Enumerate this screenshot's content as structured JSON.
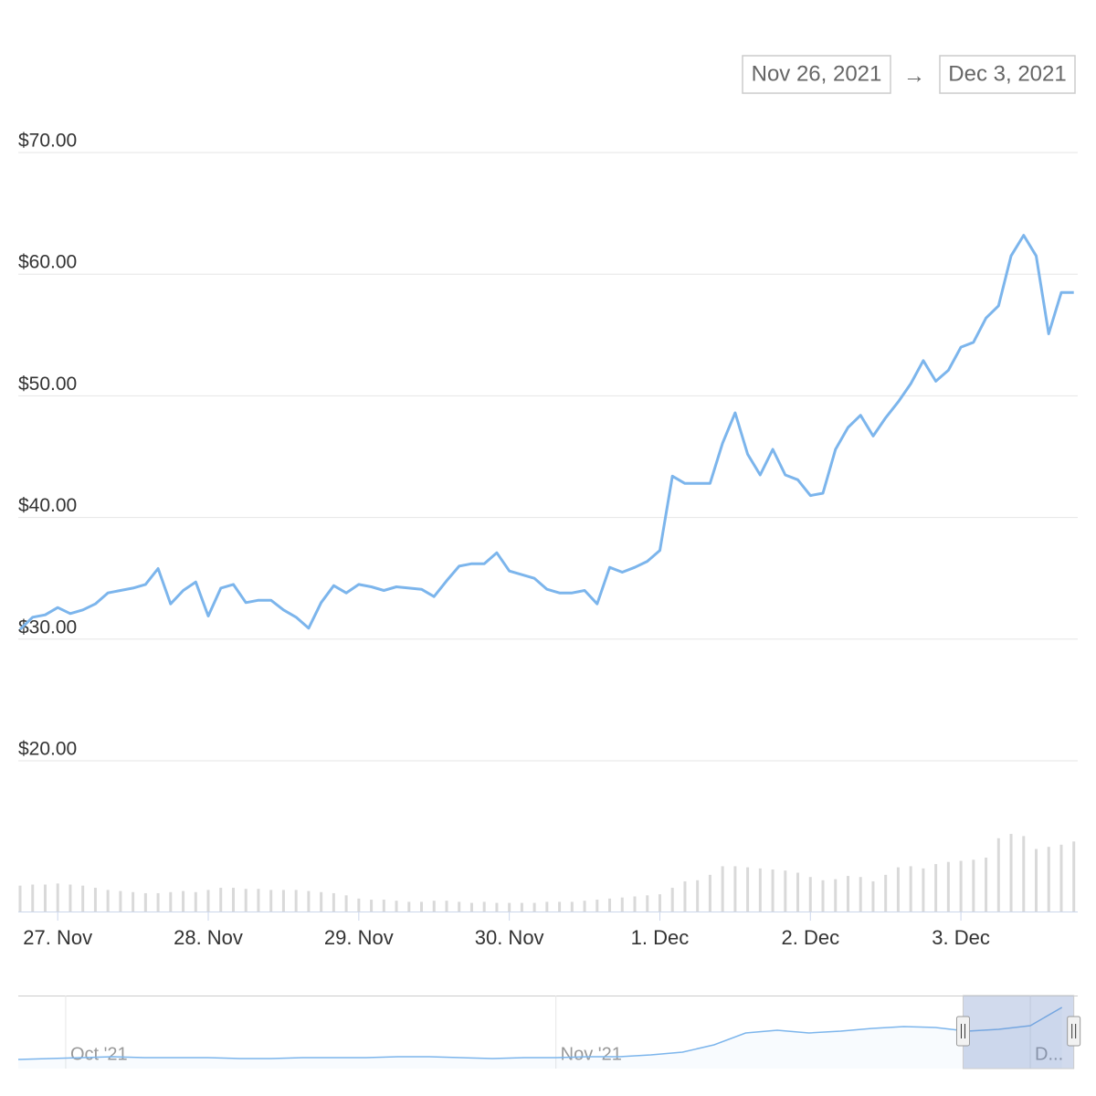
{
  "range": {
    "from": "Nov 26, 2021",
    "arrow": "→",
    "to": "Dec 3, 2021"
  },
  "chart_data": [
    {
      "type": "line",
      "color": "#7cb5ec",
      "x": [
        "2021-11-26T18:00",
        "2021-11-26T20:00",
        "2021-11-26T22:00",
        "2021-11-27T00:00",
        "2021-11-27T02:00",
        "2021-11-27T04:00",
        "2021-11-27T06:00",
        "2021-11-27T08:00",
        "2021-11-27T10:00",
        "2021-11-27T12:00",
        "2021-11-27T14:00",
        "2021-11-27T16:00",
        "2021-11-27T18:00",
        "2021-11-27T20:00",
        "2021-11-27T22:00",
        "2021-11-28T00:00",
        "2021-11-28T02:00",
        "2021-11-28T04:00",
        "2021-11-28T06:00",
        "2021-11-28T08:00",
        "2021-11-28T10:00",
        "2021-11-28T12:00",
        "2021-11-28T14:00",
        "2021-11-28T16:00",
        "2021-11-28T18:00",
        "2021-11-28T20:00",
        "2021-11-28T22:00",
        "2021-11-29T00:00",
        "2021-11-29T02:00",
        "2021-11-29T04:00",
        "2021-11-29T06:00",
        "2021-11-29T08:00",
        "2021-11-29T10:00",
        "2021-11-29T12:00",
        "2021-11-29T14:00",
        "2021-11-29T16:00",
        "2021-11-29T18:00",
        "2021-11-29T20:00",
        "2021-11-29T22:00",
        "2021-11-30T00:00",
        "2021-11-30T02:00",
        "2021-11-30T04:00",
        "2021-11-30T06:00",
        "2021-11-30T08:00",
        "2021-11-30T10:00",
        "2021-11-30T12:00",
        "2021-11-30T14:00",
        "2021-11-30T16:00",
        "2021-11-30T18:00",
        "2021-11-30T20:00",
        "2021-11-30T22:00",
        "2021-12-01T00:00",
        "2021-12-01T02:00",
        "2021-12-01T04:00",
        "2021-12-01T06:00",
        "2021-12-01T08:00",
        "2021-12-01T10:00",
        "2021-12-01T12:00",
        "2021-12-01T14:00",
        "2021-12-01T16:00",
        "2021-12-01T18:00",
        "2021-12-01T20:00",
        "2021-12-01T22:00",
        "2021-12-02T00:00",
        "2021-12-02T02:00",
        "2021-12-02T04:00",
        "2021-12-02T06:00",
        "2021-12-02T08:00",
        "2021-12-02T10:00",
        "2021-12-02T12:00",
        "2021-12-02T14:00",
        "2021-12-02T16:00",
        "2021-12-02T18:00",
        "2021-12-02T20:00",
        "2021-12-02T22:00",
        "2021-12-03T00:00",
        "2021-12-03T02:00",
        "2021-12-03T04:00",
        "2021-12-03T06:00",
        "2021-12-03T08:00",
        "2021-12-03T10:00",
        "2021-12-03T12:00",
        "2021-12-03T14:00",
        "2021-12-03T16:00",
        "2021-12-03T18:00"
      ],
      "values": [
        30.8,
        31.8,
        32.0,
        32.6,
        32.1,
        32.4,
        32.9,
        33.8,
        34.0,
        34.2,
        34.5,
        35.8,
        32.9,
        34.0,
        34.7,
        31.9,
        34.2,
        34.5,
        33.0,
        33.2,
        33.2,
        32.4,
        31.8,
        30.9,
        33.0,
        34.4,
        33.8,
        34.5,
        34.3,
        34.0,
        34.3,
        34.2,
        34.1,
        33.5,
        34.8,
        36.0,
        36.2,
        36.2,
        37.1,
        35.6,
        35.3,
        35.0,
        34.1,
        33.8,
        33.8,
        34.0,
        32.9,
        35.9,
        35.5,
        35.9,
        36.4,
        37.3,
        43.4,
        42.8,
        42.8,
        42.8,
        46.1,
        48.6,
        45.2,
        43.5,
        45.6,
        43.5,
        43.1,
        41.8,
        42.0,
        45.6,
        47.4,
        48.4,
        46.7,
        48.2,
        49.5,
        51.0,
        52.9,
        51.2,
        52.1,
        54.0,
        54.4,
        56.4,
        57.4,
        61.5,
        63.2,
        61.5,
        55.1,
        58.5,
        58.5
      ],
      "xlim": [
        "2021-11-26T18:00",
        "2021-12-03T18:20"
      ],
      "xticks": [
        {
          "value": "2021-11-27T00:00",
          "label": "27. Nov"
        },
        {
          "value": "2021-11-28T00:00",
          "label": "28. Nov"
        },
        {
          "value": "2021-11-29T00:00",
          "label": "29. Nov"
        },
        {
          "value": "2021-11-30T00:00",
          "label": "30. Nov"
        },
        {
          "value": "2021-12-01T00:00",
          "label": "1. Dec"
        },
        {
          "value": "2021-12-02T00:00",
          "label": "2. Dec"
        },
        {
          "value": "2021-12-03T00:00",
          "label": "3. Dec"
        }
      ],
      "ylim": [
        20,
        70
      ],
      "yticks": [
        {
          "value": 20,
          "label": "$20.00"
        },
        {
          "value": 30,
          "label": "$30.00"
        },
        {
          "value": 40,
          "label": "$40.00"
        },
        {
          "value": 50,
          "label": "$50.00"
        },
        {
          "value": 60,
          "label": "$60.00"
        },
        {
          "value": 70,
          "label": "$70.00"
        }
      ],
      "grid": true,
      "volume": {
        "type": "bar",
        "color": "#d9d9d9",
        "ylim": [
          0,
          100
        ],
        "values": [
          24,
          25,
          25,
          26,
          25,
          24,
          22,
          20,
          19,
          18,
          17,
          17,
          18,
          19,
          18,
          20,
          22,
          22,
          21,
          21,
          20,
          20,
          20,
          19,
          18,
          17,
          15,
          12,
          11,
          11,
          10,
          9,
          9,
          10,
          10,
          9,
          8,
          9,
          8,
          8,
          8,
          8,
          9,
          9,
          9,
          10,
          11,
          12,
          13,
          14,
          15,
          16,
          22,
          28,
          29,
          34,
          42,
          42,
          41,
          40,
          39,
          38,
          36,
          32,
          29,
          30,
          33,
          32,
          28,
          34,
          41,
          42,
          40,
          44,
          46,
          47,
          48,
          50,
          68,
          72,
          70,
          58,
          60,
          62,
          65
        ]
      }
    },
    {
      "type": "area",
      "color": "#7cb5ec",
      "x": [
        "2021-09-28T00:00",
        "2021-09-30T00:00",
        "2021-10-02T00:00",
        "2021-10-04T00:00",
        "2021-10-06T00:00",
        "2021-10-08T00:00",
        "2021-10-10T00:00",
        "2021-10-12T00:00",
        "2021-10-14T00:00",
        "2021-10-16T00:00",
        "2021-10-18T00:00",
        "2021-10-20T00:00",
        "2021-10-22T00:00",
        "2021-10-24T00:00",
        "2021-10-26T00:00",
        "2021-10-28T00:00",
        "2021-10-30T00:00",
        "2021-11-01T00:00",
        "2021-11-03T00:00",
        "2021-11-05T00:00",
        "2021-11-07T00:00",
        "2021-11-09T00:00",
        "2021-11-11T00:00",
        "2021-11-13T00:00",
        "2021-11-15T00:00",
        "2021-11-17T00:00",
        "2021-11-19T00:00",
        "2021-11-21T00:00",
        "2021-11-23T00:00",
        "2021-11-25T00:00",
        "2021-11-27T00:00",
        "2021-11-29T00:00",
        "2021-12-01T00:00",
        "2021-12-03T00:00"
      ],
      "values": [
        1,
        2,
        3,
        4,
        3,
        3,
        3,
        2,
        2,
        3,
        3,
        3,
        4,
        4,
        3,
        2,
        3,
        3,
        4,
        4,
        6,
        9,
        17,
        30,
        33,
        30,
        32,
        35,
        37,
        36,
        32,
        34,
        38,
        58
      ],
      "xlim": [
        "2021-09-28T00:00",
        "2021-12-04T00:00"
      ],
      "ylim": [
        0,
        70
      ],
      "xticks": [
        {
          "value": "2021-10-01T00:00",
          "label": "Oct '21"
        },
        {
          "value": "2021-11-01T00:00",
          "label": "Nov '21"
        },
        {
          "value": "2021-12-01T00:00",
          "label": "D..."
        }
      ],
      "selection": [
        "2021-11-26T18:00",
        "2021-12-03T18:00"
      ]
    }
  ]
}
